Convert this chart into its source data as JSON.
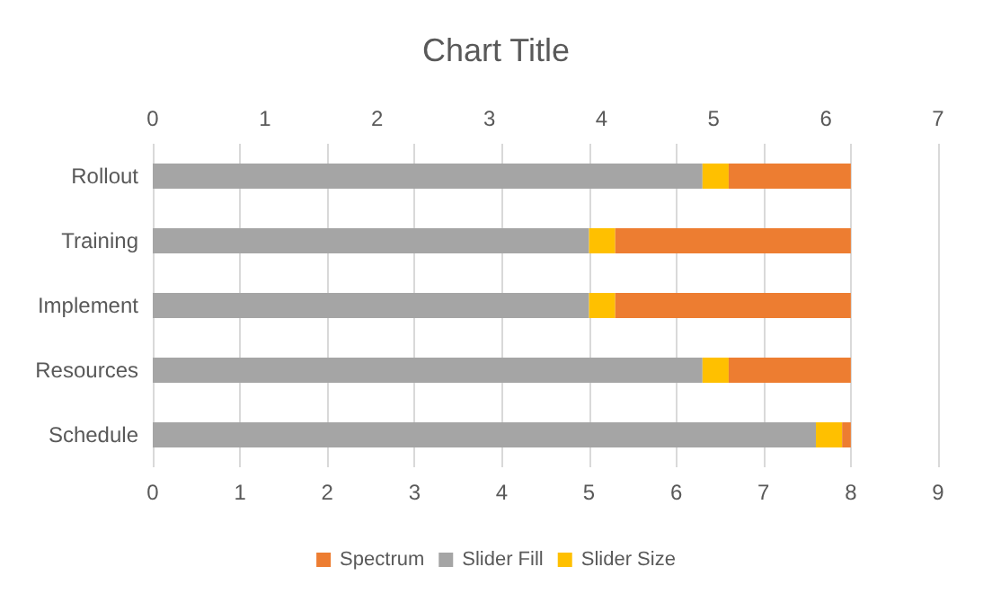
{
  "chart_data": {
    "type": "bar",
    "title": "Chart Title",
    "orientation": "horizontal",
    "stacked": true,
    "categories": [
      "Rollout",
      "Training",
      "Implement",
      "Resources",
      "Schedule"
    ],
    "series": [
      {
        "name": "Slider Fill",
        "color": "#a5a5a5",
        "values": [
          6.3,
          5.0,
          5.0,
          6.3,
          7.6
        ]
      },
      {
        "name": "Slider Size",
        "color": "#ffc000",
        "values": [
          0.3,
          0.3,
          0.3,
          0.3,
          0.3
        ]
      },
      {
        "name": "Spectrum",
        "color": "#ed7d31",
        "values": [
          1.4,
          2.7,
          2.7,
          1.4,
          0.1
        ]
      }
    ],
    "xlim": [
      0,
      9
    ],
    "xticks": [
      0,
      1,
      2,
      3,
      4,
      5,
      6,
      7,
      8,
      9
    ],
    "x2lim": [
      0,
      7
    ],
    "x2ticks": [
      0,
      1,
      2,
      3,
      4,
      5,
      6,
      7
    ],
    "grid": "x",
    "legend": "bottom"
  }
}
